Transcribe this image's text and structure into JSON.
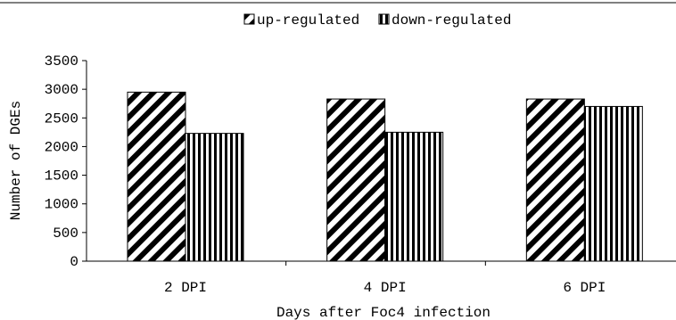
{
  "chart_data": {
    "type": "bar",
    "title": "",
    "xlabel": "Days after Foc4 infection",
    "ylabel": "Number of DGEs",
    "categories": [
      "2 DPI",
      "4 DPI",
      "6 DPI"
    ],
    "series": [
      {
        "name": "up-regulated",
        "values": [
          2950,
          2830,
          2830
        ]
      },
      {
        "name": "down-regulated",
        "values": [
          2230,
          2250,
          2700
        ]
      }
    ],
    "ylim": [
      0,
      3500
    ],
    "yticks": [
      "0",
      "500",
      "1000",
      "1500",
      "2000",
      "2500",
      "3000",
      "3500"
    ],
    "grid": false,
    "legend_position": "top-right"
  }
}
